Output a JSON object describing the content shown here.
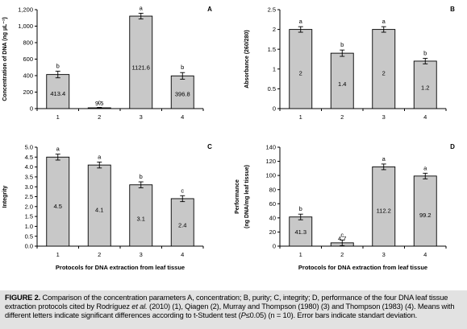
{
  "chart_data": [
    {
      "type": "bar",
      "panel_letter": "A",
      "categories": [
        "1",
        "2",
        "3",
        "4"
      ],
      "values": [
        413.4,
        9.5,
        1121.6,
        396.8
      ],
      "value_labels": [
        "413.4",
        "9.5",
        "1121.6",
        "396.8"
      ],
      "errors": [
        40,
        5,
        35,
        40
      ],
      "letters": [
        "b",
        "c",
        "a",
        "b"
      ],
      "ylabel": "Concentration of DNA (ng µL⁻¹)",
      "xlabel": "",
      "ylim": [
        0,
        1200
      ],
      "yticks": [
        0,
        200,
        400,
        600,
        800,
        1000,
        1200
      ],
      "ytick_labels": [
        "0",
        "200",
        "400",
        "600",
        "800",
        "1,000",
        "1,200"
      ]
    },
    {
      "type": "bar",
      "panel_letter": "B",
      "categories": [
        "1",
        "2",
        "3",
        "4"
      ],
      "values": [
        2,
        1.4,
        2,
        1.2
      ],
      "value_labels": [
        "2",
        "1.4",
        "2",
        "1.2"
      ],
      "errors": [
        0.07,
        0.08,
        0.07,
        0.07
      ],
      "letters": [
        "a",
        "b",
        "a",
        "b"
      ],
      "ylabel": "Absorbance (260/280)",
      "xlabel": "",
      "ylim": [
        0,
        2.5
      ],
      "yticks": [
        0,
        0.5,
        1,
        1.5,
        2,
        2.5
      ],
      "ytick_labels": [
        "0",
        "0.5",
        "1",
        "1.5",
        "2",
        "2.5"
      ]
    },
    {
      "type": "bar",
      "panel_letter": "C",
      "categories": [
        "1",
        "2",
        "3",
        "4"
      ],
      "values": [
        4.5,
        4.1,
        3.1,
        2.4
      ],
      "value_labels": [
        "4.5",
        "4.1",
        "3.1",
        "2.4"
      ],
      "errors": [
        0.15,
        0.15,
        0.15,
        0.15
      ],
      "letters": [
        "a",
        "a",
        "b",
        "c"
      ],
      "ylabel": "Integrity",
      "xlabel": "Protocols for DNA extraction from leaf tissue",
      "ylim": [
        0,
        5
      ],
      "yticks": [
        0,
        0.5,
        1,
        1.5,
        2,
        2.5,
        3,
        3.5,
        4,
        4.5,
        5
      ],
      "ytick_labels": [
        "0.0",
        "0.5",
        "1.0",
        "1.5",
        "2.0",
        "2.5",
        "3.0",
        "3.5",
        "4.0",
        "4.5",
        "5.0"
      ]
    },
    {
      "type": "bar",
      "panel_letter": "D",
      "categories": [
        "1",
        "2",
        "3",
        "4"
      ],
      "values": [
        41.3,
        4.7,
        112.2,
        99.2
      ],
      "value_labels": [
        "41.3",
        "4.7",
        "112.2",
        "99.2"
      ],
      "errors": [
        4,
        4,
        4,
        4
      ],
      "letters": [
        "b",
        "c",
        "a",
        "a"
      ],
      "ylabel_line1": "Performance",
      "ylabel_line2": "(ng DNA/mg leaf tissue)",
      "xlabel": "Protocols for DNA extraction from leaf tissue",
      "ylim": [
        0,
        140
      ],
      "yticks": [
        0,
        20,
        40,
        60,
        80,
        100,
        120,
        140
      ],
      "ytick_labels": [
        "0",
        "20",
        "40",
        "60",
        "80",
        "100",
        "120",
        "140"
      ]
    }
  ],
  "caption": {
    "figure_label": "FIGURE 2.",
    "part1": " Comparison of the concentration parameters A, concentration; B, purity; C, integrity; D, performance of the four DNA leaf tissue extraction protocols cited by Rodríguez ",
    "et_al": "et al.",
    "part2": " (2010) (1), Qiagen (2), Murray and Thompson (1980) (3) and Thompson (1983) (4). Means with different letters indicate significant differences according to t-Student test (",
    "p_symbol": "P",
    "part3": "≤0.05) (n = 10). Error bars indicate standart deviation."
  },
  "colors": {
    "bar_fill": "#c8c8c8",
    "bar_stroke": "#000000",
    "caption_background": "#e2e2e2"
  }
}
